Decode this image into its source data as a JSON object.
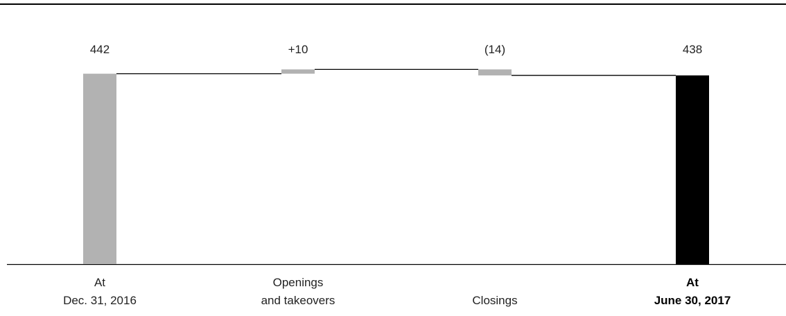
{
  "chart_data": {
    "type": "waterfall",
    "title": "",
    "xlabel": "",
    "ylabel": "",
    "ylim": [
      0,
      442
    ],
    "grid": false,
    "categories": [
      [
        "At",
        "Dec. 31, 2016"
      ],
      [
        "Openings",
        "and takeovers"
      ],
      [
        "",
        "Closings"
      ],
      [
        "At",
        "June 30, 2017"
      ]
    ],
    "steps": [
      {
        "kind": "total",
        "value": 442,
        "label": "442"
      },
      {
        "kind": "delta",
        "value": 10,
        "label": "+10"
      },
      {
        "kind": "delta",
        "value": -14,
        "label": "(14)"
      },
      {
        "kind": "total",
        "value": 438,
        "label": "438",
        "highlight": true
      }
    ],
    "colors": {
      "total": "#b2b2b2",
      "delta": "#b2b2b2",
      "highlight": "#000000",
      "connector": "#000000",
      "rule": "#000000"
    }
  }
}
